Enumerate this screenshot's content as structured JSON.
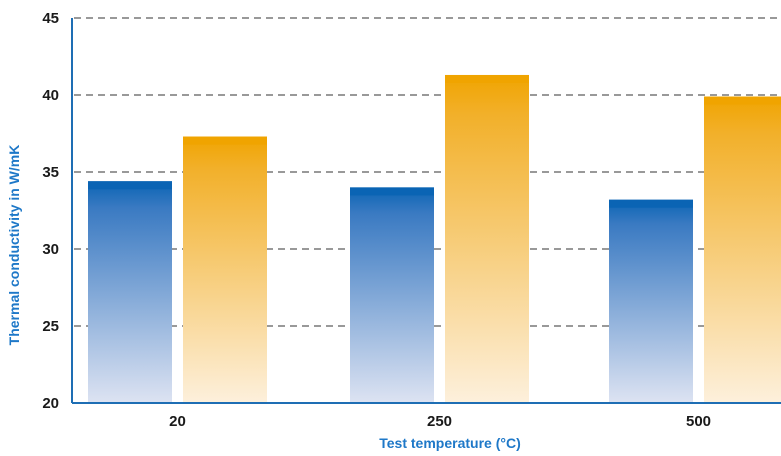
{
  "chart_data": {
    "type": "bar",
    "title": "",
    "xlabel": "Test temperature (°C)",
    "ylabel": "Thermal conductivity in W/mK",
    "categories": [
      "20",
      "250",
      "500"
    ],
    "series": [
      {
        "values": [
          34.4,
          34.0,
          33.2
        ]
      },
      {
        "values": [
          37.3,
          41.3,
          39.9
        ]
      }
    ],
    "ylim": [
      20,
      45
    ],
    "yticks": [
      20,
      25,
      30,
      35,
      40,
      45
    ],
    "grid": "horizontal dashed",
    "legend": "none",
    "colors": {
      "series_blue_top": "#0a64b4",
      "series_blue_bottom": "#dde3f2",
      "series_orange_top": "#f0a400",
      "series_orange_bottom": "#fdf0dc",
      "axis": "#1e6eb4",
      "axis_title": "#1e78c8",
      "grid": "#333333"
    }
  }
}
